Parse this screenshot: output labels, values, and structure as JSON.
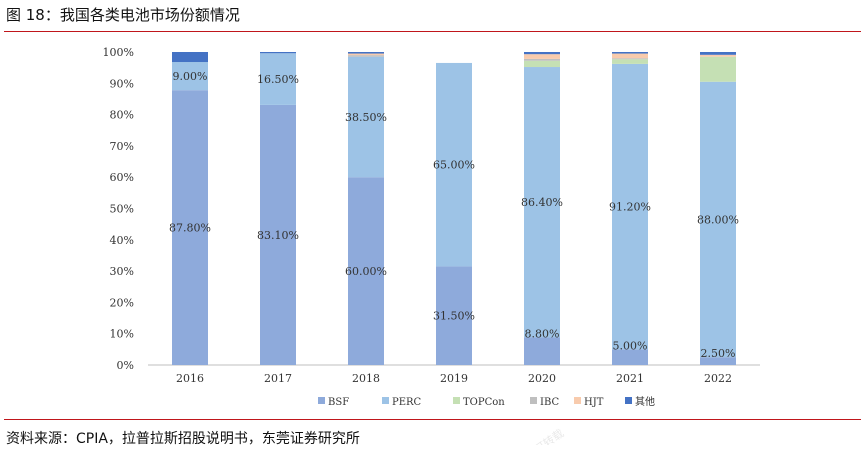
{
  "figure_title": "图 18：我国各类电池市场份额情况",
  "source": "资料来源：CPIA，拉普拉斯招股说明书，东莞证券研究所",
  "watermark": "不可转载",
  "colors": {
    "BSF": "#8eaadb",
    "PERC": "#9dc3e6",
    "TOPCon": "#c5e0b4",
    "IBC": "#bfbfbf",
    "HJT": "#f8cbad",
    "其他": "#4472c4",
    "accent_rule": "#c0161b"
  },
  "chart_data": {
    "type": "bar",
    "stacked": true,
    "normalized": true,
    "title": "",
    "xlabel": "",
    "ylabel": "",
    "ylim": [
      0,
      100
    ],
    "yticks": [
      "0%",
      "10%",
      "20%",
      "30%",
      "40%",
      "50%",
      "60%",
      "70%",
      "80%",
      "90%",
      "100%"
    ],
    "categories": [
      "2016",
      "2017",
      "2018",
      "2019",
      "2020",
      "2021",
      "2022"
    ],
    "series": [
      {
        "name": "BSF",
        "values": [
          87.8,
          83.1,
          60.0,
          31.5,
          8.8,
          5.0,
          2.5
        ]
      },
      {
        "name": "PERC",
        "values": [
          9.0,
          16.5,
          38.5,
          65.0,
          86.4,
          91.2,
          88.0
        ]
      },
      {
        "name": "TOPCon",
        "values": [
          0,
          0,
          0,
          0,
          2.0,
          1.5,
          8.0
        ]
      },
      {
        "name": "IBC",
        "values": [
          0,
          0,
          0.5,
          0,
          0.6,
          0.3,
          0
        ]
      },
      {
        "name": "HJT",
        "values": [
          0,
          0,
          0.5,
          0,
          1.5,
          1.5,
          0.6
        ]
      },
      {
        "name": "其他",
        "values": [
          3.2,
          0.4,
          0.5,
          0,
          0.7,
          0.5,
          0.9
        ]
      }
    ],
    "data_labels": {
      "BSF": [
        "87.80%",
        "83.10%",
        "60.00%",
        "31.50%",
        "8.80%",
        "5.00%",
        "2.50%"
      ],
      "PERC": [
        "9.00%",
        "16.50%",
        "38.50%",
        "65.00%",
        "86.40%",
        "91.20%",
        "88.00%"
      ]
    },
    "legend_position": "bottom",
    "grid": false
  }
}
